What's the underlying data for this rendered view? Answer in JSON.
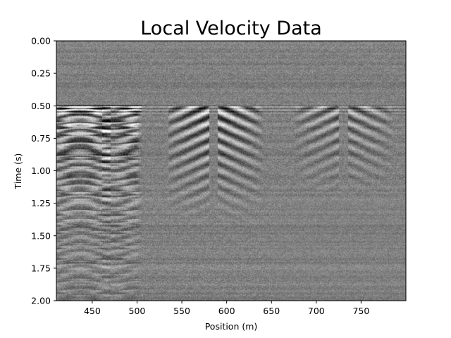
{
  "chart_data": {
    "type": "heatmap",
    "title": "Local Velocity Data",
    "xlabel": "Position (m)",
    "ylabel": "Time (s)",
    "xlim": [
      410,
      800
    ],
    "ylim": [
      2.0,
      0.0
    ],
    "y_inverted": true,
    "colormap": "gray",
    "grid": false,
    "xticks": [
      450,
      500,
      550,
      600,
      650,
      700,
      750
    ],
    "xtick_labels": [
      "450",
      "500",
      "550",
      "600",
      "650",
      "700",
      "750"
    ],
    "yticks": [
      0.0,
      0.25,
      0.5,
      0.75,
      1.0,
      1.25,
      1.5,
      1.75,
      2.0
    ],
    "ytick_labels": [
      "0.00",
      "0.25",
      "0.50",
      "0.75",
      "1.00",
      "1.25",
      "1.50",
      "1.75",
      "2.00"
    ],
    "features": [
      {
        "kind": "strong_reflection_zone",
        "x_range": [
          410,
          505
        ],
        "t_range": [
          0.5,
          2.0
        ]
      },
      {
        "kind": "shot_gather_apex",
        "x": 585,
        "t": 0.5,
        "x_extent": [
          535,
          645
        ],
        "t_extent": [
          0.5,
          1.4
        ]
      },
      {
        "kind": "shot_gather_apex",
        "x": 730,
        "t": 0.5,
        "x_extent": [
          675,
          785
        ],
        "t_extent": [
          0.5,
          1.2
        ]
      },
      {
        "kind": "horizontal_event",
        "t": 0.5,
        "x_range": [
          410,
          800
        ]
      }
    ]
  }
}
